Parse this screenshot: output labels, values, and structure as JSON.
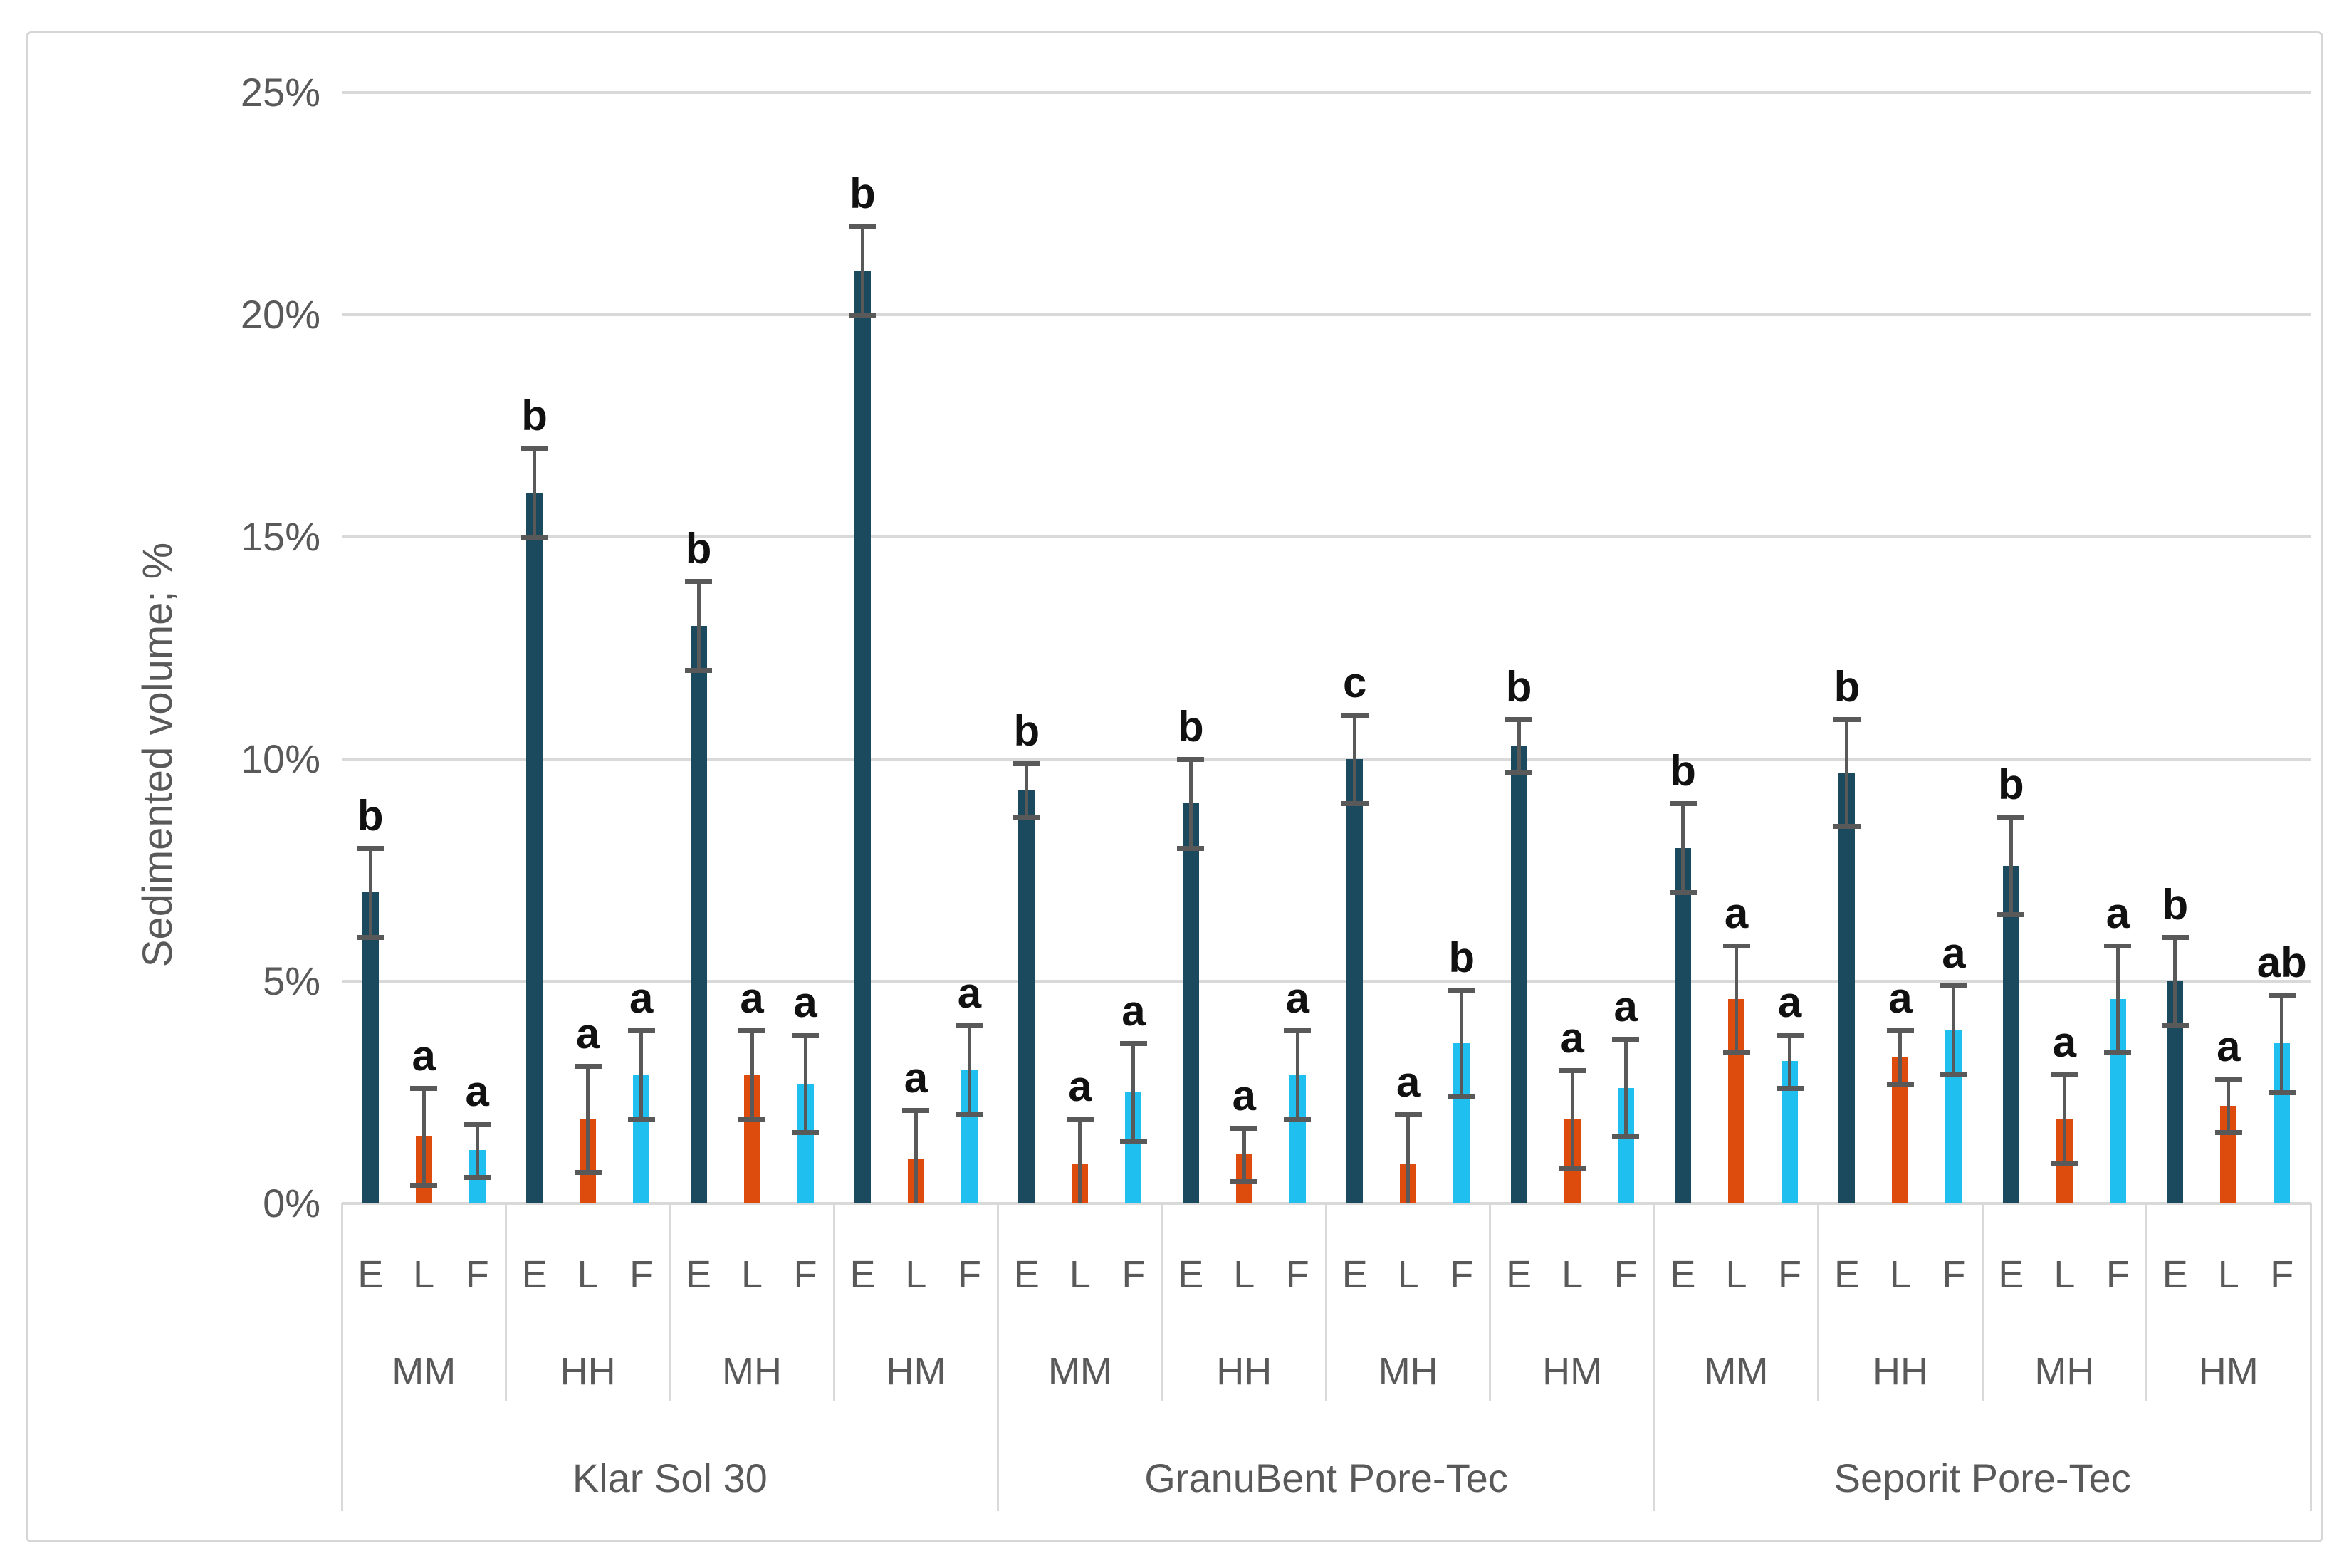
{
  "chart_data": {
    "type": "bar",
    "title": "",
    "ylabel": "Sedimented volume; %",
    "xlabel": "",
    "ylim": [
      0,
      25
    ],
    "ytick_values": [
      0,
      5,
      10,
      15,
      20,
      25
    ],
    "ytick_labels": [
      "0%",
      "5%",
      "10%",
      "15%",
      "20%",
      "25%"
    ],
    "grid": true,
    "legend": "none",
    "series_names": [
      "E",
      "L",
      "F"
    ],
    "series_colors": {
      "E": "#1b4a5f",
      "L": "#dd4c0c",
      "F": "#1fbfef"
    },
    "error_bar_color": "#595959",
    "axis_text_color": "#595959",
    "sig_letter_color": "#111111",
    "gridline_color": "#d9d9d9",
    "sections": [
      {
        "label": "Klar Sol 30",
        "groups": [
          {
            "label": "MM",
            "bars": [
              {
                "series": "E",
                "value": 7.0,
                "err": 1.0,
                "sig": "b"
              },
              {
                "series": "L",
                "value": 1.5,
                "err": 1.1,
                "sig": "a"
              },
              {
                "series": "F",
                "value": 1.2,
                "err": 0.6,
                "sig": "a"
              }
            ]
          },
          {
            "label": "HH",
            "bars": [
              {
                "series": "E",
                "value": 16.0,
                "err": 1.0,
                "sig": "b"
              },
              {
                "series": "L",
                "value": 1.9,
                "err": 1.2,
                "sig": "a"
              },
              {
                "series": "F",
                "value": 2.9,
                "err": 1.0,
                "sig": "a"
              }
            ]
          },
          {
            "label": "MH",
            "bars": [
              {
                "series": "E",
                "value": 13.0,
                "err": 1.0,
                "sig": "b"
              },
              {
                "series": "L",
                "value": 2.9,
                "err": 1.0,
                "sig": "a"
              },
              {
                "series": "F",
                "value": 2.7,
                "err": 1.1,
                "sig": "a"
              }
            ]
          },
          {
            "label": "HM",
            "bars": [
              {
                "series": "E",
                "value": 21.0,
                "err": 1.0,
                "sig": "b"
              },
              {
                "series": "L",
                "value": 1.0,
                "err": 1.1,
                "sig": "a"
              },
              {
                "series": "F",
                "value": 3.0,
                "err": 1.0,
                "sig": "a"
              }
            ]
          }
        ]
      },
      {
        "label": "GranuBent Pore-Tec",
        "groups": [
          {
            "label": "MM",
            "bars": [
              {
                "series": "E",
                "value": 9.3,
                "err": 0.6,
                "sig": "b"
              },
              {
                "series": "L",
                "value": 0.9,
                "err": 1.0,
                "sig": "a"
              },
              {
                "series": "F",
                "value": 2.5,
                "err": 1.1,
                "sig": "a"
              }
            ]
          },
          {
            "label": "HH",
            "bars": [
              {
                "series": "E",
                "value": 9.0,
                "err": 1.0,
                "sig": "b"
              },
              {
                "series": "L",
                "value": 1.1,
                "err": 0.6,
                "sig": "a"
              },
              {
                "series": "F",
                "value": 2.9,
                "err": 1.0,
                "sig": "a"
              }
            ]
          },
          {
            "label": "MH",
            "bars": [
              {
                "series": "E",
                "value": 10.0,
                "err": 1.0,
                "sig": "c"
              },
              {
                "series": "L",
                "value": 0.9,
                "err": 1.1,
                "sig": "a"
              },
              {
                "series": "F",
                "value": 3.6,
                "err": 1.2,
                "sig": "b"
              }
            ]
          },
          {
            "label": "HM",
            "bars": [
              {
                "series": "E",
                "value": 10.3,
                "err": 0.6,
                "sig": "b"
              },
              {
                "series": "L",
                "value": 1.9,
                "err": 1.1,
                "sig": "a"
              },
              {
                "series": "F",
                "value": 2.6,
                "err": 1.1,
                "sig": "a"
              }
            ]
          }
        ]
      },
      {
        "label": "Seporit Pore-Tec",
        "groups": [
          {
            "label": "MM",
            "bars": [
              {
                "series": "E",
                "value": 8.0,
                "err": 1.0,
                "sig": "b"
              },
              {
                "series": "L",
                "value": 4.6,
                "err": 1.2,
                "sig": "a"
              },
              {
                "series": "F",
                "value": 3.2,
                "err": 0.6,
                "sig": "a"
              }
            ]
          },
          {
            "label": "HH",
            "bars": [
              {
                "series": "E",
                "value": 9.7,
                "err": 1.2,
                "sig": "b"
              },
              {
                "series": "L",
                "value": 3.3,
                "err": 0.6,
                "sig": "a"
              },
              {
                "series": "F",
                "value": 3.9,
                "err": 1.0,
                "sig": "a"
              }
            ]
          },
          {
            "label": "MH",
            "bars": [
              {
                "series": "E",
                "value": 7.6,
                "err": 1.1,
                "sig": "b"
              },
              {
                "series": "L",
                "value": 1.9,
                "err": 1.0,
                "sig": "a"
              },
              {
                "series": "F",
                "value": 4.6,
                "err": 1.2,
                "sig": "a"
              }
            ]
          },
          {
            "label": "HM",
            "bars": [
              {
                "series": "E",
                "value": 5.0,
                "err": 1.0,
                "sig": "b"
              },
              {
                "series": "L",
                "value": 2.2,
                "err": 0.6,
                "sig": "a"
              },
              {
                "series": "F",
                "value": 3.6,
                "err": 1.1,
                "sig": "ab"
              }
            ]
          }
        ]
      }
    ]
  }
}
